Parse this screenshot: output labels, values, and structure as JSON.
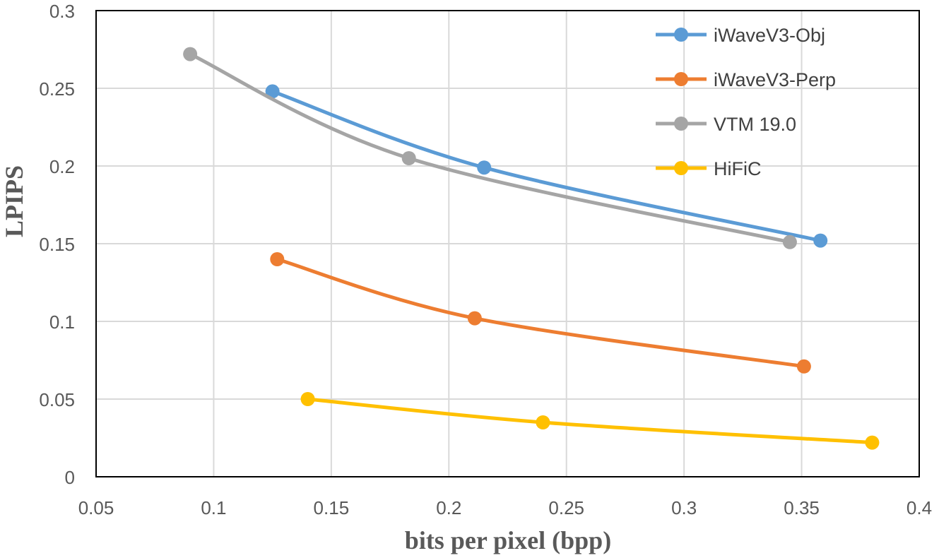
{
  "chart_data": {
    "type": "line",
    "title": "",
    "xlabel": "bits per pixel (bpp)",
    "ylabel": "LPIPS",
    "xlim": [
      0.05,
      0.4
    ],
    "ylim": [
      0,
      0.3
    ],
    "x_ticks": [
      "0.05",
      "0.1",
      "0.15",
      "0.2",
      "0.25",
      "0.3",
      "0.35",
      "0.4"
    ],
    "y_ticks": [
      "0",
      "0.05",
      "0.1",
      "0.15",
      "0.2",
      "0.25",
      "0.3"
    ],
    "grid": true,
    "smooth": true,
    "legend_position": "top-right",
    "series": [
      {
        "name": "iWaveV3-Obj",
        "color": "#5b9bd5",
        "points": [
          [
            0.125,
            0.248
          ],
          [
            0.215,
            0.199
          ],
          [
            0.358,
            0.152
          ]
        ]
      },
      {
        "name": "iWaveV3-Perp",
        "color": "#ed7d31",
        "points": [
          [
            0.127,
            0.14
          ],
          [
            0.211,
            0.102
          ],
          [
            0.351,
            0.071
          ]
        ]
      },
      {
        "name": "VTM 19.0",
        "color": "#a5a5a5",
        "points": [
          [
            0.09,
            0.272
          ],
          [
            0.183,
            0.205
          ],
          [
            0.345,
            0.151
          ]
        ]
      },
      {
        "name": "HiFiC",
        "color": "#ffc000",
        "points": [
          [
            0.14,
            0.05
          ],
          [
            0.24,
            0.035
          ],
          [
            0.38,
            0.022
          ]
        ]
      }
    ]
  }
}
